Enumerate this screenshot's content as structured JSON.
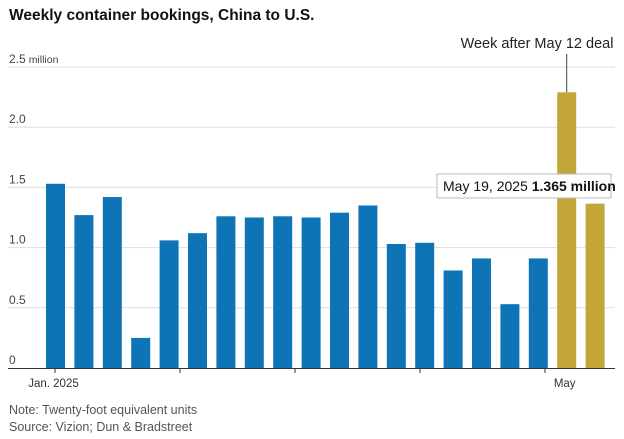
{
  "title": "Weekly container bookings, China to U.S.",
  "note": "Note: Twenty-foot equivalent units",
  "source": "Source: Vizion; Dun & Bradstreet",
  "colors": {
    "default_bar": "#0f74b5",
    "highlight_bar": "#c3a63a",
    "grid": "#dddddd",
    "axis": "#333333"
  },
  "chart_data": {
    "type": "bar",
    "title": "Weekly container bookings, China to U.S.",
    "xlabel": "",
    "ylabel": "",
    "ylim": [
      0,
      2.5
    ],
    "yticks": [
      0,
      0.5,
      1.0,
      1.5,
      2.0,
      2.5
    ],
    "ytick_labels": [
      "0",
      "0.5",
      "1.0",
      "1.5",
      "2.0",
      "2.5"
    ],
    "y_unit_label": "million",
    "x_tick_labels": [
      {
        "label": "Jan. 2025",
        "index": 0
      },
      {
        "label": "May",
        "index": 18
      }
    ],
    "values": [
      1.53,
      1.27,
      1.42,
      0.25,
      1.06,
      1.12,
      1.26,
      1.25,
      1.26,
      1.25,
      1.29,
      1.35,
      1.03,
      1.04,
      0.81,
      0.91,
      0.53,
      0.91,
      2.29,
      1.365
    ],
    "highlighted_indices": [
      18,
      19
    ],
    "annotations": [
      {
        "text": "Week after May 12 deal",
        "index": 18
      },
      {
        "text_date": "May 19, 2025",
        "text_value": "1.365 million",
        "index": 19
      }
    ],
    "grid": true,
    "legend": "none"
  }
}
